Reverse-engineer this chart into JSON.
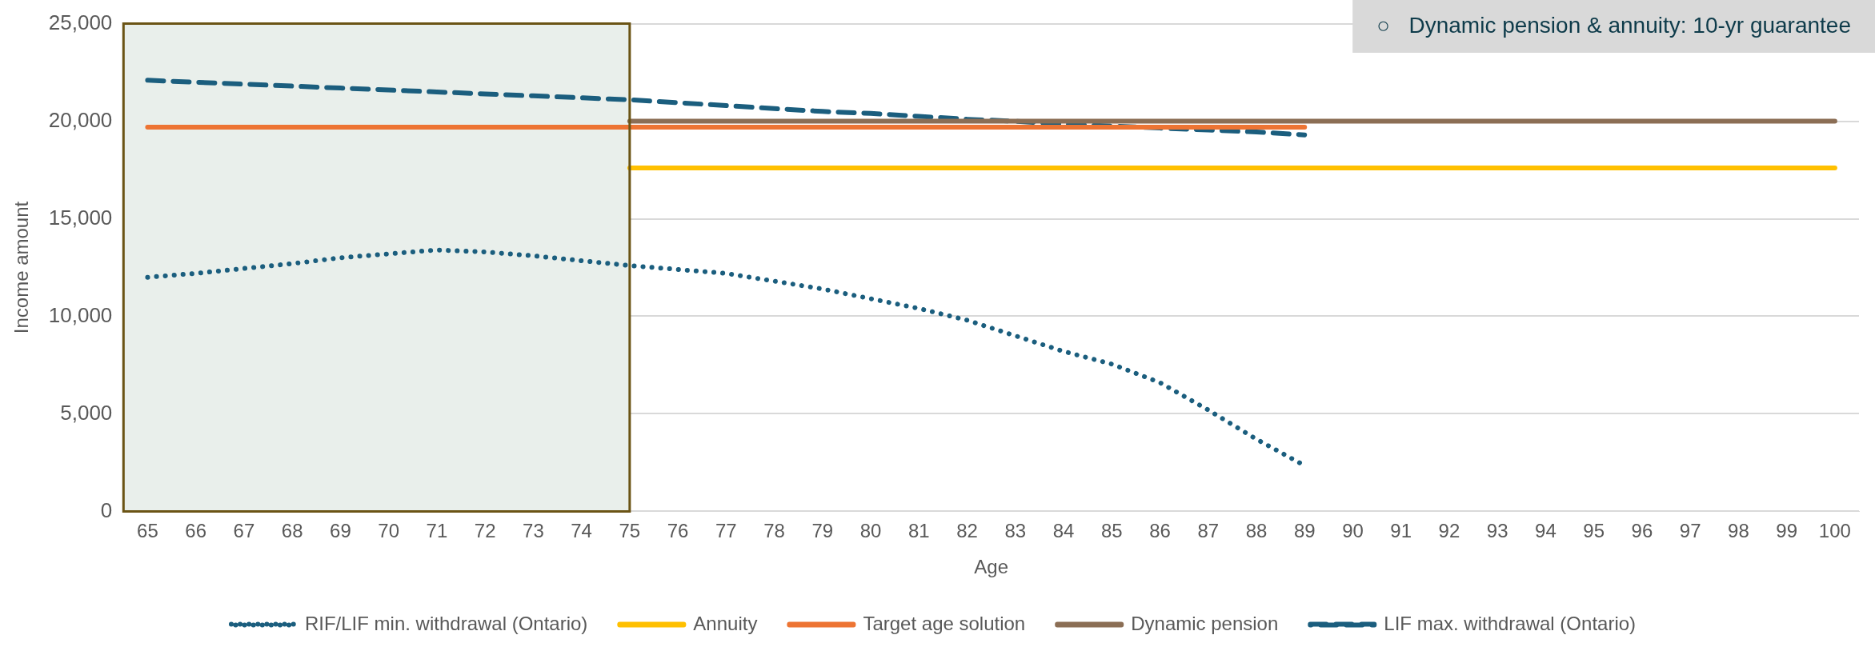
{
  "chart_data": {
    "type": "line",
    "xlabel": "Age",
    "ylabel": "Income amount",
    "categories": [
      "65",
      "66",
      "67",
      "68",
      "69",
      "70",
      "71",
      "72",
      "73",
      "74",
      "75",
      "76",
      "77",
      "78",
      "79",
      "80",
      "81",
      "82",
      "83",
      "84",
      "85",
      "86",
      "87",
      "88",
      "89",
      "90",
      "91",
      "92",
      "93",
      "94",
      "95",
      "96",
      "97",
      "98",
      "99",
      "100"
    ],
    "ylim": [
      0,
      25000
    ],
    "yticks": [
      {
        "value": 0,
        "label": "0"
      },
      {
        "value": 5000,
        "label": "5,000"
      },
      {
        "value": 10000,
        "label": "10,000"
      },
      {
        "value": 15000,
        "label": "15,000"
      },
      {
        "value": 20000,
        "label": "20,000"
      },
      {
        "value": 25000,
        "label": "25,000"
      }
    ],
    "grid": "y",
    "legend": "bottom",
    "marker": "none",
    "series": [
      {
        "name": "RIF/LIF min. withdrawal (Ontario)",
        "color": "#1b5e7e",
        "line_style": "dotted",
        "values": [
          12000,
          12200,
          12450,
          12700,
          13000,
          13200,
          13400,
          13300,
          13100,
          12850,
          12600,
          12400,
          12200,
          11800,
          11400,
          10900,
          10400,
          9800,
          9000,
          8200,
          7550,
          6600,
          5200,
          3700,
          2350,
          null,
          null,
          null,
          null,
          null,
          null,
          null,
          null,
          null,
          null,
          null
        ]
      },
      {
        "name": "Annuity",
        "color": "#ffc000",
        "line_style": "solid",
        "values": [
          null,
          null,
          null,
          null,
          null,
          null,
          null,
          null,
          null,
          null,
          17600,
          17600,
          17600,
          17600,
          17600,
          17600,
          17600,
          17600,
          17600,
          17600,
          17600,
          17600,
          17600,
          17600,
          17600,
          17600,
          17600,
          17600,
          17600,
          17600,
          17600,
          17600,
          17600,
          17600,
          17600,
          17600
        ]
      },
      {
        "name": "Target age solution",
        "color": "#ed7433",
        "line_style": "solid",
        "values": [
          19700,
          19700,
          19700,
          19700,
          19700,
          19700,
          19700,
          19700,
          19700,
          19700,
          19700,
          19700,
          19700,
          19700,
          19700,
          19700,
          19700,
          19700,
          19700,
          19700,
          19700,
          19700,
          19700,
          19700,
          19700,
          null,
          null,
          null,
          null,
          null,
          null,
          null,
          null,
          null,
          null,
          null
        ]
      },
      {
        "name": "Dynamic pension",
        "color": "#8b6e55",
        "line_style": "solid",
        "values": [
          null,
          null,
          null,
          null,
          null,
          null,
          null,
          null,
          null,
          null,
          20000,
          20000,
          20000,
          20000,
          20000,
          20000,
          20000,
          20000,
          20000,
          20000,
          20000,
          20000,
          20000,
          20000,
          20000,
          20000,
          20000,
          20000,
          20000,
          20000,
          20000,
          20000,
          20000,
          20000,
          20000,
          20000
        ]
      },
      {
        "name": "LIF max. withdrawal (Ontario)",
        "color": "#1b5e7e",
        "line_style": "dashed",
        "values": [
          22100,
          22000,
          21900,
          21800,
          21700,
          21600,
          21500,
          21400,
          21300,
          21200,
          21100,
          20950,
          20800,
          20650,
          20500,
          20400,
          20250,
          20100,
          20000,
          19850,
          19750,
          19650,
          19550,
          19450,
          19300,
          null,
          null,
          null,
          null,
          null,
          null,
          null,
          null,
          null,
          null,
          null
        ]
      }
    ],
    "bands": [
      {
        "axis": "x",
        "from": "65",
        "to": "75",
        "color": "#e9efeb"
      }
    ],
    "annotations": [
      "○   Dynamic pension & annuity: 10-yr guarantee"
    ]
  }
}
